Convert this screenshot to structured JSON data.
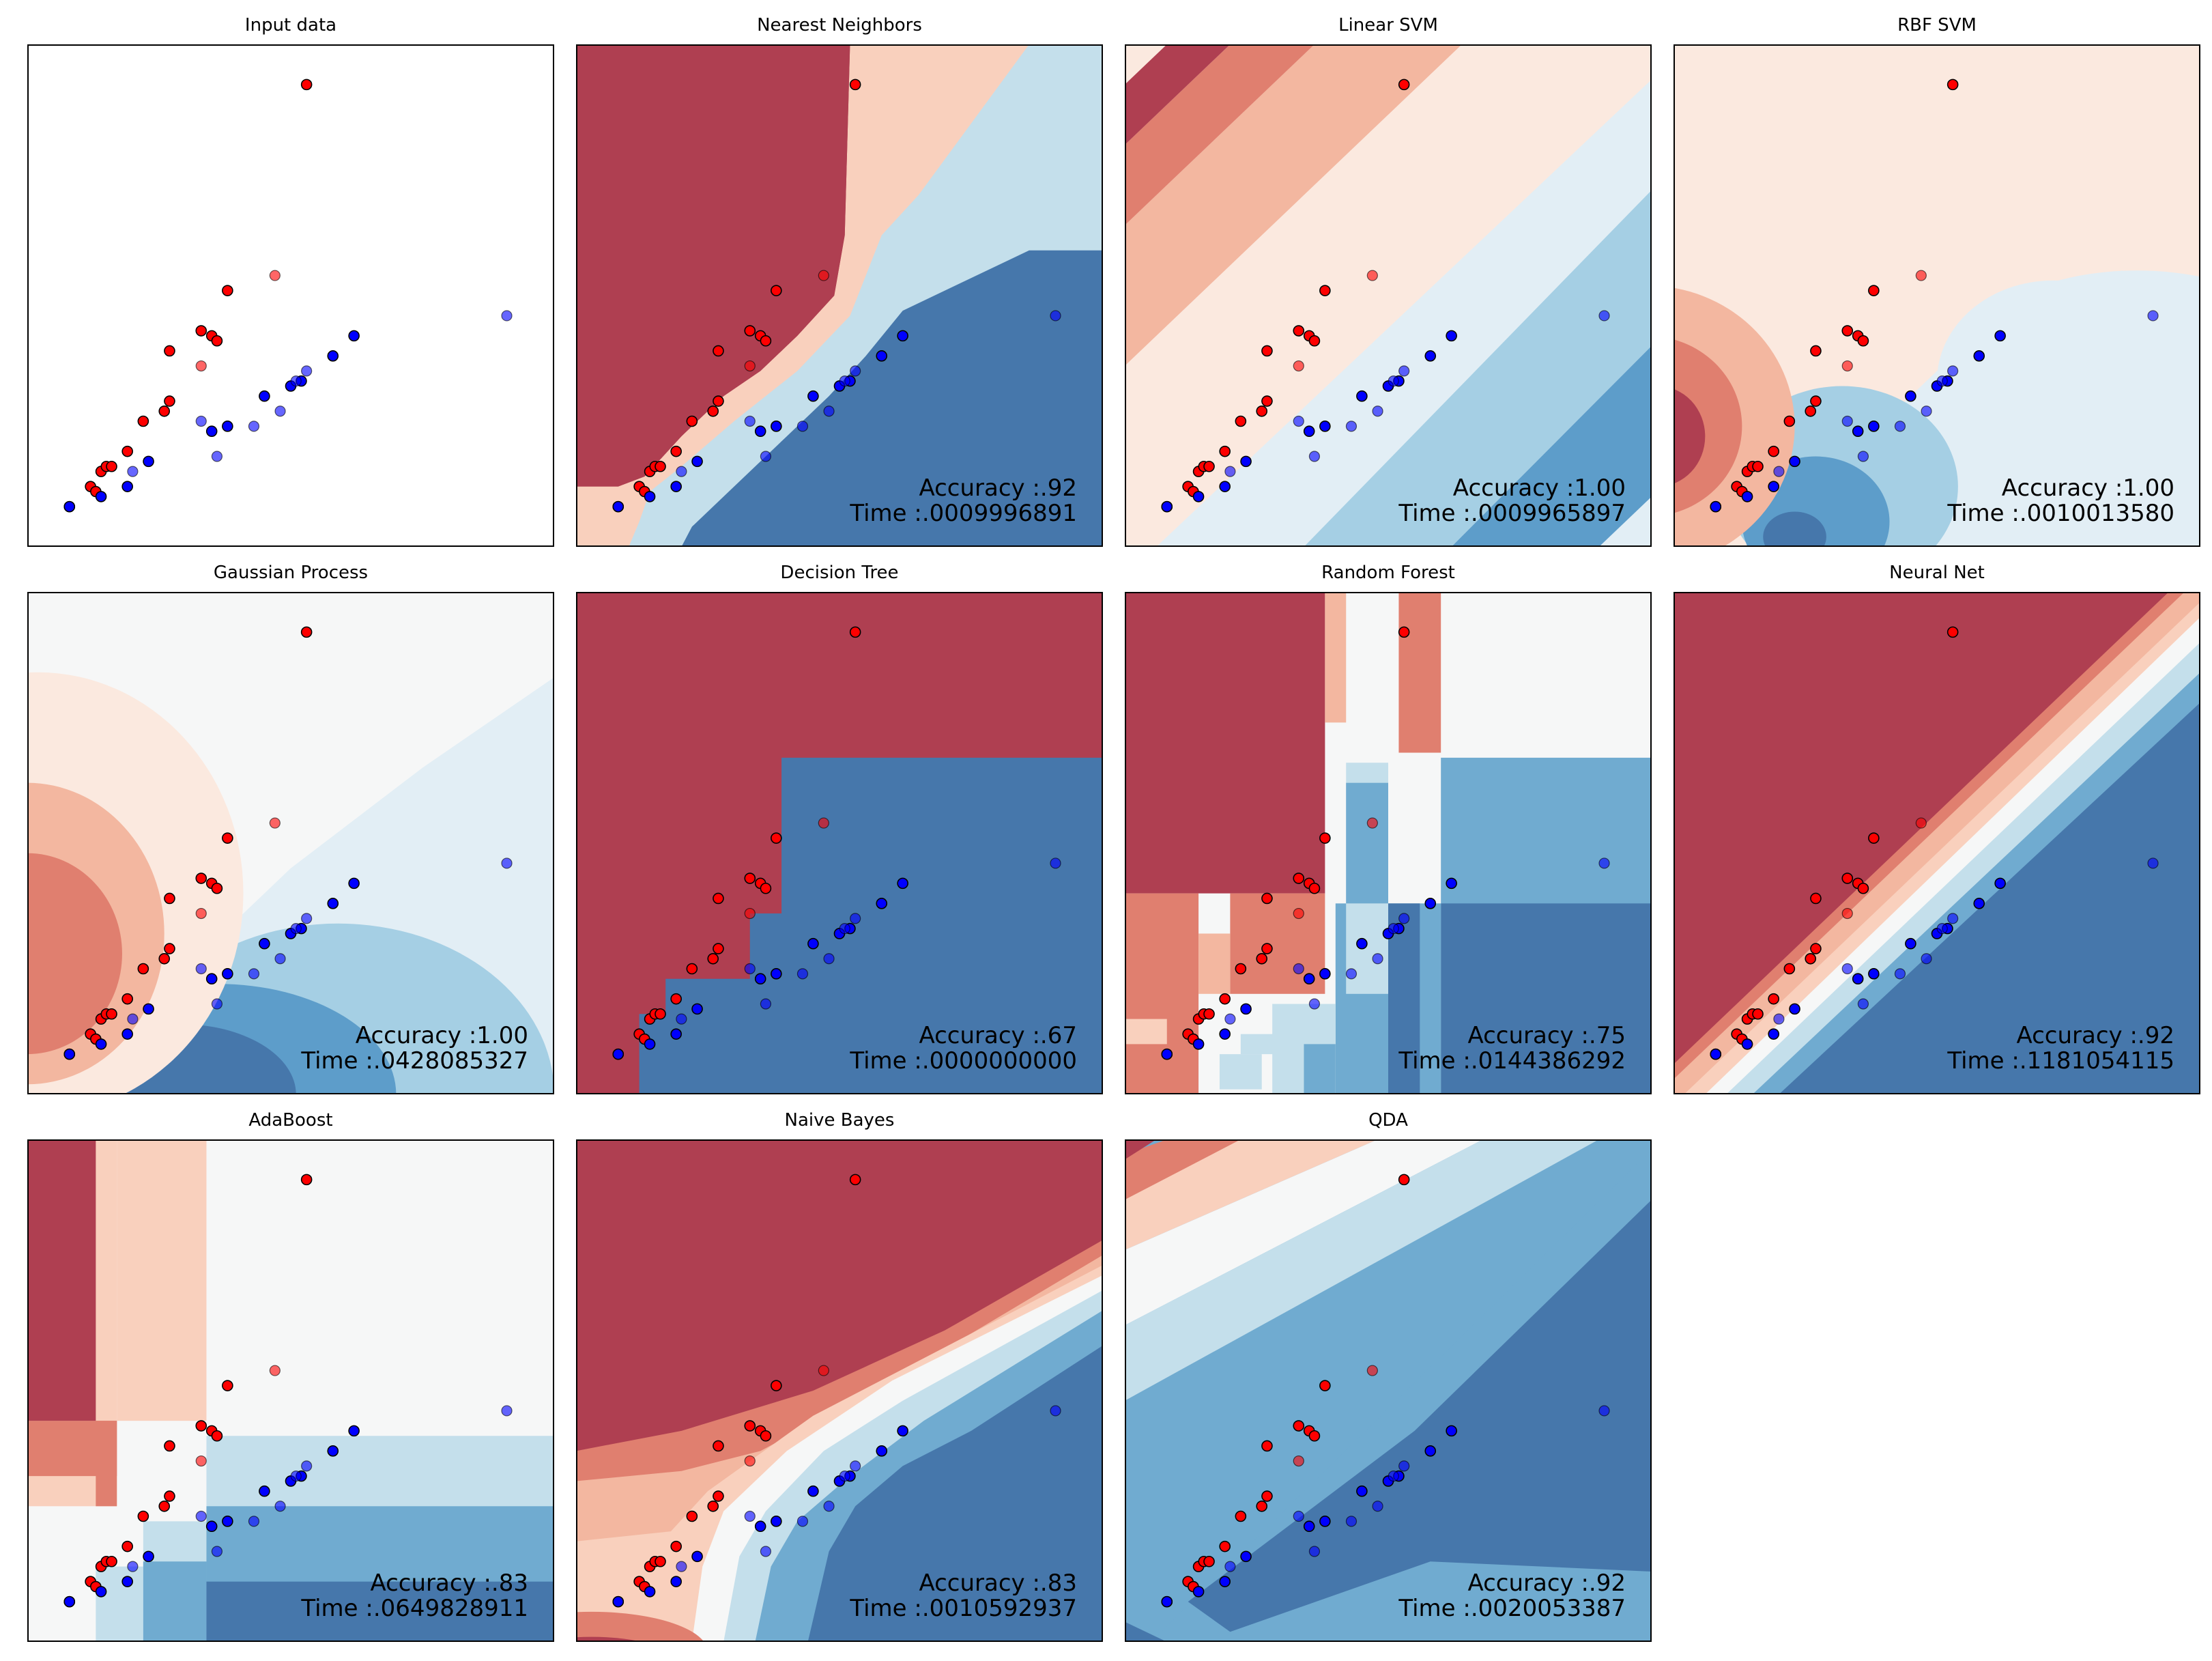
{
  "chart_data": [
    {
      "type": "scatter",
      "title": "Input data",
      "background": "none",
      "accuracy": "",
      "time": ""
    },
    {
      "type": "scatter",
      "title": "Nearest Neighbors",
      "background": "knn",
      "accuracy": "Accuracy :.92",
      "time": "Time :.0009996891"
    },
    {
      "type": "scatter",
      "title": "Linear SVM",
      "background": "linear",
      "accuracy": "Accuracy :1.00",
      "time": "Time :.0009965897"
    },
    {
      "type": "scatter",
      "title": "RBF SVM",
      "background": "rbf",
      "accuracy": "Accuracy :1.00",
      "time": "Time :.0010013580"
    },
    {
      "type": "scatter",
      "title": "Gaussian Process",
      "background": "gp",
      "accuracy": "Accuracy :1.00",
      "time": "Time :.0428085327"
    },
    {
      "type": "scatter",
      "title": "Decision Tree",
      "background": "tree",
      "accuracy": "Accuracy :.67",
      "time": "Time :.0000000000"
    },
    {
      "type": "scatter",
      "title": "Random Forest",
      "background": "forest",
      "accuracy": "Accuracy :.75",
      "time": "Time :.0144386292"
    },
    {
      "type": "scatter",
      "title": "Neural Net",
      "background": "mlp",
      "accuracy": "Accuracy :.92",
      "time": "Time :.1181054115"
    },
    {
      "type": "scatter",
      "title": "AdaBoost",
      "background": "ada",
      "accuracy": "Accuracy :.83",
      "time": "Time :.0649828911"
    },
    {
      "type": "scatter",
      "title": "Naive Bayes",
      "background": "nb",
      "accuracy": "Accuracy :.83",
      "time": "Time :.0010592937"
    },
    {
      "type": "scatter",
      "title": "QDA",
      "background": "qda",
      "accuracy": "Accuracy :.92",
      "time": "Time :.0020053387"
    }
  ],
  "points": {
    "xlim": [
      0,
      1
    ],
    "ylim": [
      0,
      1
    ],
    "train_red": [
      [
        0.08,
        0.08
      ],
      [
        0.12,
        0.12
      ],
      [
        0.13,
        0.11
      ],
      [
        0.14,
        0.15
      ],
      [
        0.15,
        0.16
      ],
      [
        0.16,
        0.16
      ],
      [
        0.19,
        0.19
      ],
      [
        0.22,
        0.25
      ],
      [
        0.26,
        0.27
      ],
      [
        0.27,
        0.29
      ],
      [
        0.27,
        0.39
      ],
      [
        0.33,
        0.43
      ],
      [
        0.35,
        0.42
      ],
      [
        0.36,
        0.41
      ],
      [
        0.38,
        0.51
      ],
      [
        0.53,
        0.92
      ]
    ],
    "train_blue": [
      [
        0.08,
        0.08
      ],
      [
        0.14,
        0.1
      ],
      [
        0.19,
        0.12
      ],
      [
        0.23,
        0.17
      ],
      [
        0.35,
        0.23
      ],
      [
        0.38,
        0.24
      ],
      [
        0.45,
        0.3
      ],
      [
        0.5,
        0.32
      ],
      [
        0.52,
        0.33
      ],
      [
        0.58,
        0.38
      ],
      [
        0.62,
        0.42
      ]
    ],
    "test_red": [
      [
        0.33,
        0.36
      ],
      [
        0.47,
        0.54
      ]
    ],
    "test_blue": [
      [
        0.2,
        0.15
      ],
      [
        0.33,
        0.25
      ],
      [
        0.36,
        0.18
      ],
      [
        0.43,
        0.24
      ],
      [
        0.48,
        0.27
      ],
      [
        0.51,
        0.33
      ],
      [
        0.53,
        0.35
      ],
      [
        0.91,
        0.46
      ]
    ]
  },
  "colors": {
    "red_point": "#ff0000",
    "blue_point": "#0000ff",
    "cmap": [
      "#67001f",
      "#b2182b",
      "#d6604d",
      "#f4a582",
      "#fddbc7",
      "#f7f7f7",
      "#d1e5f0",
      "#92c5de",
      "#4393c3",
      "#2166ac",
      "#053061"
    ]
  }
}
